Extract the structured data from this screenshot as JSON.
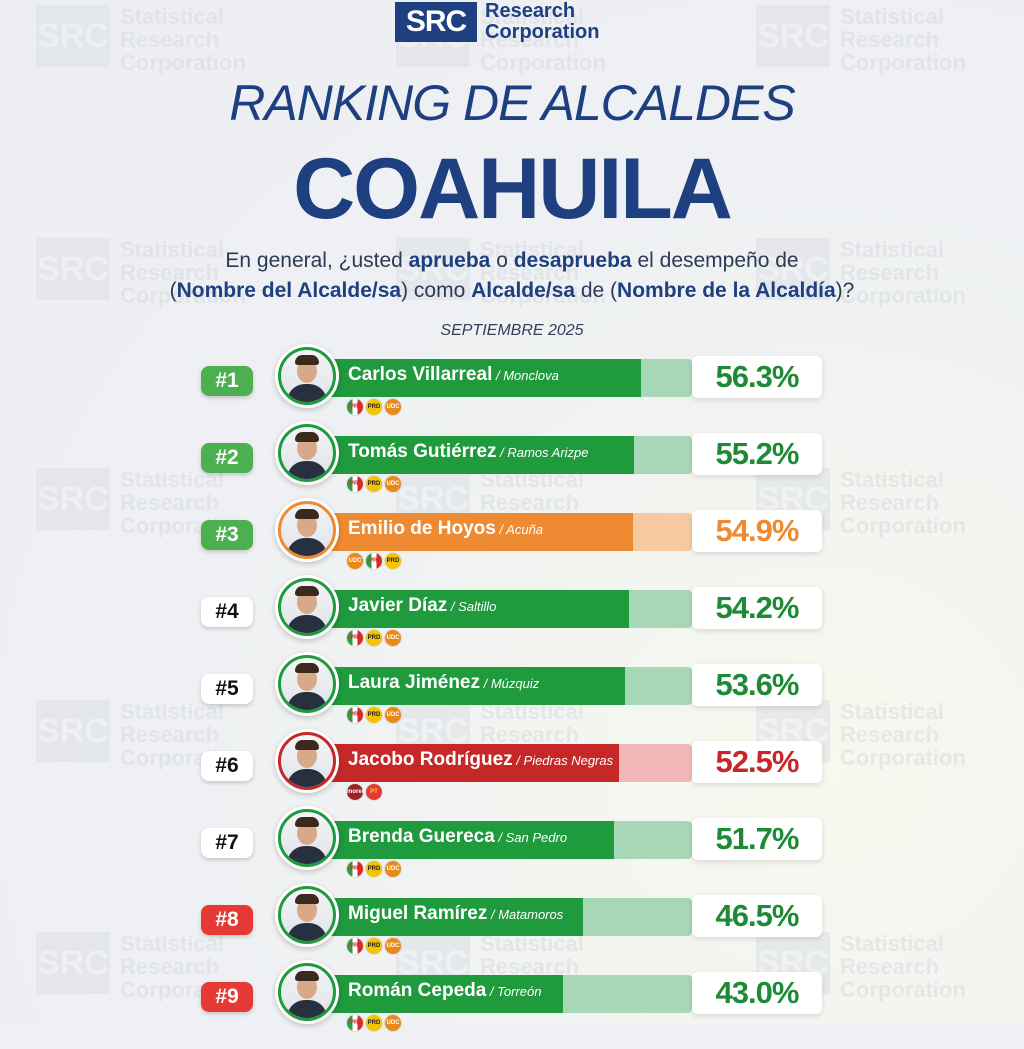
{
  "header": {
    "logo_mark": "SRC",
    "logo_line1": "Research",
    "logo_line2": "Corporation",
    "subtitle": "RANKING DE ALCALDES",
    "title": "COAHUILA",
    "question": {
      "p1": "En general, ¿usted ",
      "b1": "aprueba",
      "p2": " o ",
      "b2": "desaprueba",
      "p3": " el desempeño de",
      "p4": "(",
      "b3": "Nombre del Alcalde/sa",
      "p5": ") como ",
      "b4": "Alcalde/sa",
      "p6": " de (",
      "b5": "Nombre de la Alcaldía",
      "p7": ")?"
    },
    "date": "SEPTIEMBRE 2025"
  },
  "watermark": {
    "mark": "SRC",
    "line1": "Statistical",
    "line2": "Research",
    "line3": "Corporation"
  },
  "colors": {
    "green": "#1f9a3d",
    "green_light": "#a6d7b6",
    "orange": "#ee8a32",
    "orange_light": "#f7c9a0",
    "red": "#c62828",
    "red_light": "#f2b8b8",
    "pct_green": "#1f8a35",
    "pct_orange": "#ee8a32",
    "pct_red": "#c62828"
  },
  "chart_data": {
    "type": "bar",
    "title": "RANKING DE ALCALDES",
    "subtitle": "COAHUILA",
    "categories": [
      "Carlos Villarreal",
      "Tomás Gutiérrez",
      "Emilio de Hoyos",
      "Javier Díaz",
      "Laura Jiménez",
      "Jacobo Rodríguez",
      "Brenda Guereca",
      "Miguel Ramírez",
      "Román Cepeda"
    ],
    "values": [
      56.3,
      55.2,
      54.9,
      54.2,
      53.6,
      52.5,
      51.7,
      46.5,
      43.0
    ],
    "ylim": [
      0,
      65
    ]
  },
  "rows": [
    {
      "rank": "#1",
      "badge": "green",
      "name": "Carlos Villarreal",
      "city": " / Monclova",
      "pct": "56.3%",
      "value": 56.3,
      "theme": "green",
      "parties": [
        "pri",
        "prd",
        "udc"
      ],
      "party_text": [
        "PRI",
        "PRD",
        "UDC"
      ]
    },
    {
      "rank": "#2",
      "badge": "green",
      "name": "Tomás Gutiérrez",
      "city": " / Ramos Arizpe",
      "pct": "55.2%",
      "value": 55.2,
      "theme": "green",
      "parties": [
        "pri",
        "prd",
        "udc"
      ],
      "party_text": [
        "PRI",
        "PRD",
        "UDC"
      ]
    },
    {
      "rank": "#3",
      "badge": "green",
      "name": "Emilio de Hoyos",
      "city": " / Acuña",
      "pct": "54.9%",
      "value": 54.9,
      "theme": "orange",
      "parties": [
        "udc",
        "pri",
        "prd"
      ],
      "party_text": [
        "UDC",
        "PRI",
        "PRD"
      ]
    },
    {
      "rank": "#4",
      "badge": "white",
      "name": "Javier Díaz",
      "city": " / Saltillo",
      "pct": "54.2%",
      "value": 54.2,
      "theme": "green",
      "parties": [
        "pri",
        "prd",
        "udc"
      ],
      "party_text": [
        "PRI",
        "PRD",
        "UDC"
      ]
    },
    {
      "rank": "#5",
      "badge": "white",
      "name": "Laura Jiménez",
      "city": " / Múzquiz",
      "pct": "53.6%",
      "value": 53.6,
      "theme": "green",
      "parties": [
        "pri",
        "prd",
        "udc"
      ],
      "party_text": [
        "PRI",
        "PRD",
        "UDC"
      ]
    },
    {
      "rank": "#6",
      "badge": "white",
      "name": "Jacobo Rodríguez",
      "city": " / Piedras Negras",
      "pct": "52.5%",
      "value": 52.5,
      "theme": "red",
      "parties": [
        "morena",
        "pt"
      ],
      "party_text": [
        "morena",
        "PT"
      ]
    },
    {
      "rank": "#7",
      "badge": "white",
      "name": "Brenda Guereca",
      "city": " / San Pedro",
      "pct": "51.7%",
      "value": 51.7,
      "theme": "green",
      "parties": [
        "pri",
        "prd",
        "udc"
      ],
      "party_text": [
        "PRI",
        "PRD",
        "UDC"
      ]
    },
    {
      "rank": "#8",
      "badge": "red",
      "name": "Miguel Ramírez",
      "city": " / Matamoros",
      "pct": "46.5%",
      "value": 46.5,
      "theme": "green",
      "parties": [
        "pri",
        "prd",
        "udc"
      ],
      "party_text": [
        "PRI",
        "PRD",
        "UDC"
      ]
    },
    {
      "rank": "#9",
      "badge": "red",
      "name": "Román Cepeda",
      "city": " / Torreón",
      "pct": "43.0%",
      "value": 43.0,
      "theme": "green",
      "parties": [
        "pri",
        "prd",
        "udc"
      ],
      "party_text": [
        "PRI",
        "PRD",
        "UDC"
      ]
    }
  ]
}
